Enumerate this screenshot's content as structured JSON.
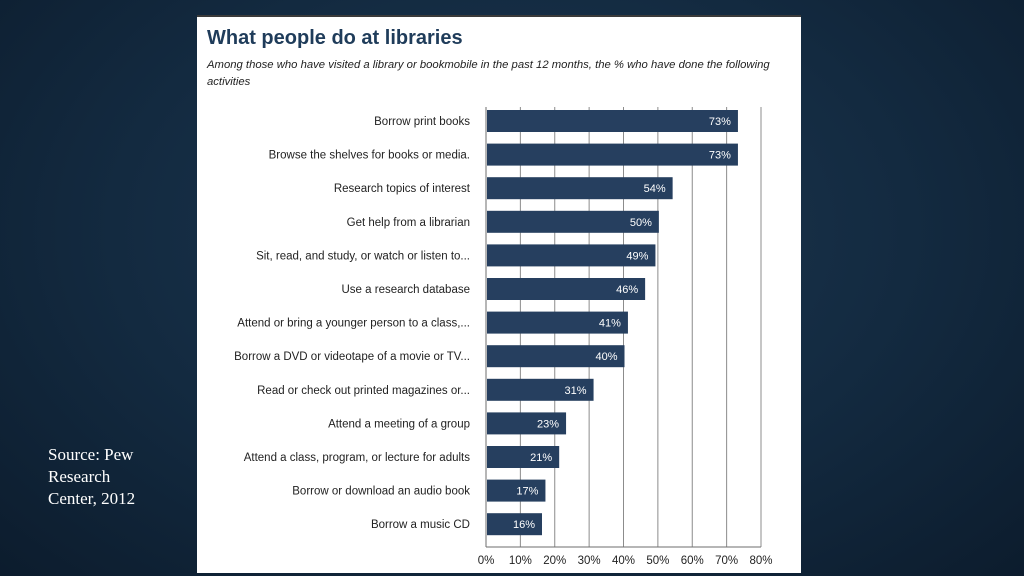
{
  "sidebar": {
    "source_lines": [
      "Source: Pew",
      "Research",
      "Center, 2012"
    ]
  },
  "colors": {
    "bar": "#263f5f",
    "grid": "#8c8c8c",
    "title": "#1f3c5a"
  },
  "chart_data": {
    "type": "bar",
    "orientation": "horizontal",
    "title": "What people do at libraries",
    "subtitle": "Among those who have visited a library or bookmobile in the past 12 months, the % who have done the following activities",
    "categories": [
      "Borrow print books",
      "Browse the shelves for books or media.",
      "Research topics of interest",
      "Get help from a librarian",
      "Sit, read, and study, or watch or listen to...",
      "Use a research database",
      "Attend or bring a younger person to a class,...",
      "Borrow a DVD or videotape of a movie or TV...",
      "Read or check out printed magazines or...",
      "Attend a meeting of a group",
      "Attend a class, program, or lecture for adults",
      "Borrow or download an audio book",
      "Borrow a music CD"
    ],
    "values": [
      73,
      73,
      54,
      50,
      49,
      46,
      41,
      40,
      31,
      23,
      21,
      17,
      16
    ],
    "value_labels": [
      "73%",
      "73%",
      "54%",
      "50%",
      "49%",
      "46%",
      "41%",
      "40%",
      "31%",
      "23%",
      "21%",
      "17%",
      "16%"
    ],
    "xlim": [
      0,
      80
    ],
    "xticks": [
      0,
      10,
      20,
      30,
      40,
      50,
      60,
      70,
      80
    ],
    "xtick_labels": [
      "0%",
      "10%",
      "20%",
      "30%",
      "40%",
      "50%",
      "60%",
      "70%",
      "80%"
    ],
    "grid": true,
    "legend": "none"
  }
}
